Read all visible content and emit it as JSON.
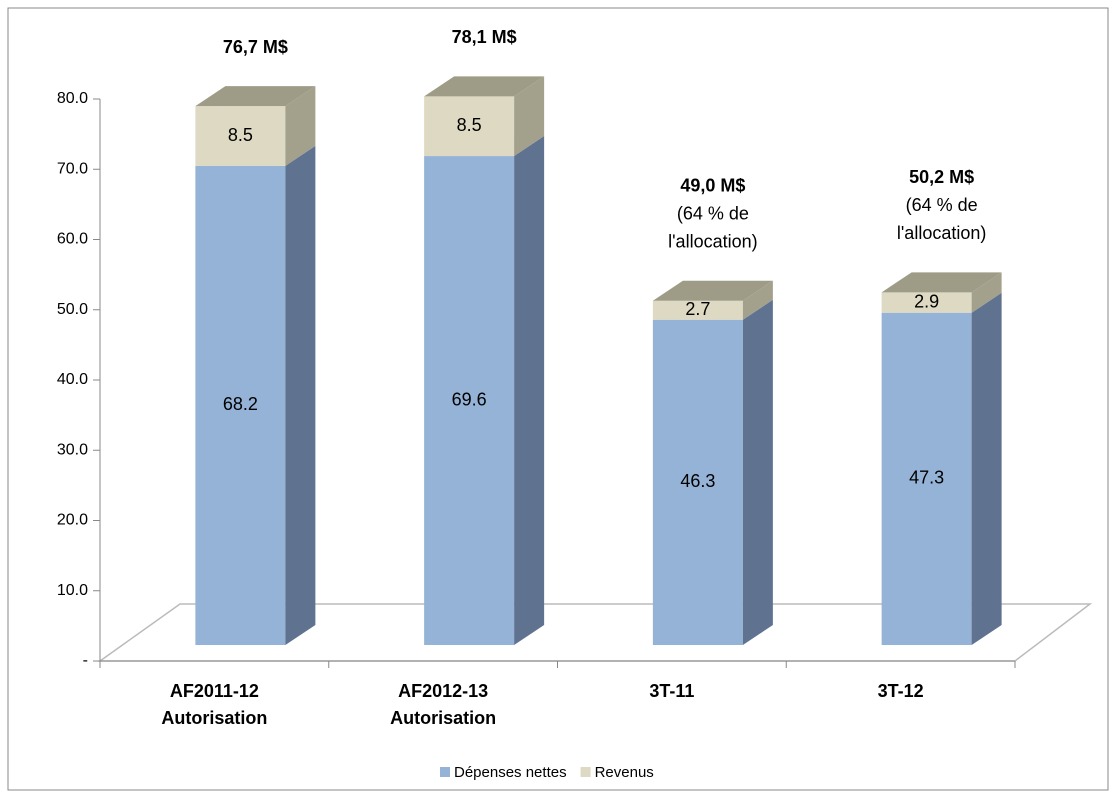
{
  "chart_data": {
    "type": "bar3d_stacked",
    "categories": [
      [
        "AF2011-12",
        "Autorisation"
      ],
      [
        "AF2012-13",
        "Autorisation"
      ],
      [
        "3T-11"
      ],
      [
        "3T-12"
      ]
    ],
    "series": [
      {
        "name": "Dépenses nettes",
        "color": "#95b3d7",
        "side_color": "#5f7391",
        "values": [
          68.2,
          69.6,
          46.3,
          47.3
        ]
      },
      {
        "name": "Revenus",
        "color": "#ddd9c3",
        "side_color": "#a3a08c",
        "values": [
          8.5,
          8.5,
          2.7,
          2.9
        ]
      }
    ],
    "annotations": [
      [
        "76,7 M$"
      ],
      [
        "78,1 M$"
      ],
      [
        "49,0 M$",
        "(64 % de",
        "l'allocation)"
      ],
      [
        "50,2 M$",
        "(64 % de",
        "l'allocation)"
      ]
    ],
    "ylim": [
      0,
      80
    ],
    "yticks": [
      {
        "value": 0,
        "label": "-"
      },
      {
        "value": 10,
        "label": "10.0"
      },
      {
        "value": 20,
        "label": "20.0"
      },
      {
        "value": 30,
        "label": "30.0"
      },
      {
        "value": 40,
        "label": "40.0"
      },
      {
        "value": 50,
        "label": "50.0"
      },
      {
        "value": 60,
        "label": "60.0"
      },
      {
        "value": 70,
        "label": "70.0"
      },
      {
        "value": 80,
        "label": "80.0"
      }
    ],
    "legend": "bottom"
  }
}
